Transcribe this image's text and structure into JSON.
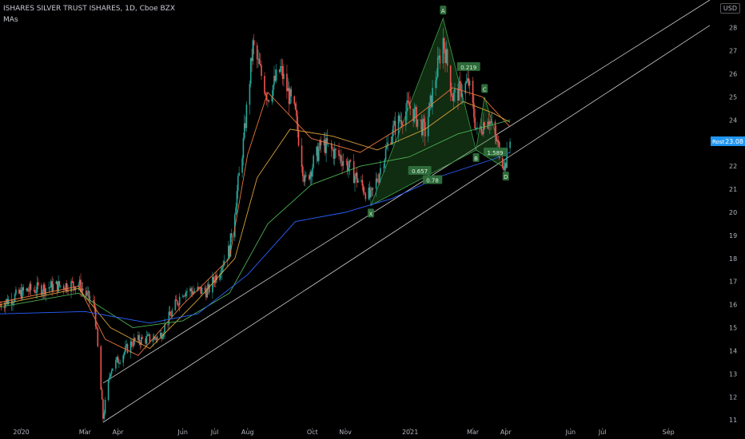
{
  "header": {
    "symbol_line": "ISHARES SILVER TRUST ISHARES, 1D, Cboe BZX",
    "indicator": "MAs",
    "currency": "USD"
  },
  "price_tag": {
    "label": "Rost",
    "value": "23.08"
  },
  "colors": {
    "bg": "#000000",
    "up": "#26a69a",
    "down": "#ef5350",
    "ma_fast": "#e8743b",
    "ma_mid": "#d8a23a",
    "ma_slow": "#4caf50",
    "ma_long": "#2962ff",
    "pattern_fill": "#2e7d32",
    "label_bg": "#2e6b3a",
    "axis_text": "#b2b5be",
    "price_tag": "#2196f3"
  },
  "chart_data": {
    "type": "candlestick",
    "title": "ISHARES SILVER TRUST ISHARES, 1D, Cboe BZX",
    "y_axis": {
      "ticks": [
        11,
        12,
        13,
        14,
        15,
        16,
        17,
        18,
        19,
        20,
        21,
        22,
        23,
        24,
        25,
        26,
        27,
        28
      ],
      "range": [
        10.8,
        29.2
      ],
      "position": "right"
    },
    "x_axis": {
      "ticks": [
        "2020",
        "Mar",
        "Apr",
        "Jun",
        "Jul",
        "Aug",
        "Oct",
        "Nov",
        "2021",
        "Mar",
        "Apr",
        "Jun",
        "Jul",
        "Sep"
      ]
    },
    "price_path": [
      [
        "2019-12-12",
        16.0
      ],
      [
        "2020-01-05",
        16.6
      ],
      [
        "2020-02-01",
        16.8
      ],
      [
        "2020-02-24",
        16.9
      ],
      [
        "2020-03-10",
        15.9
      ],
      [
        "2020-03-18",
        11.1
      ],
      [
        "2020-03-25",
        13.2
      ],
      [
        "2020-04-15",
        14.4
      ],
      [
        "2020-05-10",
        14.6
      ],
      [
        "2020-06-01",
        16.6
      ],
      [
        "2020-06-25",
        16.6
      ],
      [
        "2020-07-15",
        18.4
      ],
      [
        "2020-07-28",
        23.0
      ],
      [
        "2020-08-06",
        27.2
      ],
      [
        "2020-08-20",
        25.0
      ],
      [
        "2020-09-01",
        26.2
      ],
      [
        "2020-09-15",
        24.2
      ],
      [
        "2020-09-24",
        21.3
      ],
      [
        "2020-10-10",
        23.0
      ],
      [
        "2020-10-30",
        22.3
      ],
      [
        "2020-11-25",
        20.6
      ],
      [
        "2020-12-15",
        23.5
      ],
      [
        "2020-12-31",
        24.6
      ],
      [
        "2021-01-15",
        23.5
      ],
      [
        "2021-02-01",
        27.5
      ],
      [
        "2021-02-10",
        25.0
      ],
      [
        "2021-02-25",
        25.6
      ],
      [
        "2021-03-05",
        23.4
      ],
      [
        "2021-03-15",
        24.2
      ],
      [
        "2021-03-31",
        22.0
      ],
      [
        "2021-04-05",
        23.08
      ]
    ],
    "moving_averages": [
      {
        "name": "ma_fast",
        "points": [
          [
            "2019-12-12",
            16.1
          ],
          [
            "2020-02-24",
            16.8
          ],
          [
            "2020-03-20",
            14.5
          ],
          [
            "2020-04-20",
            13.8
          ],
          [
            "2020-06-01",
            16.0
          ],
          [
            "2020-07-15",
            18.0
          ],
          [
            "2020-08-01",
            22.5
          ],
          [
            "2020-08-20",
            25.2
          ],
          [
            "2020-09-30",
            23.2
          ],
          [
            "2020-11-15",
            22.6
          ],
          [
            "2020-12-31",
            23.9
          ],
          [
            "2021-02-10",
            25.4
          ],
          [
            "2021-03-10",
            25.0
          ],
          [
            "2021-04-05",
            23.7
          ]
        ]
      },
      {
        "name": "ma_mid",
        "points": [
          [
            "2019-12-12",
            16.0
          ],
          [
            "2020-02-24",
            16.7
          ],
          [
            "2020-03-25",
            15.0
          ],
          [
            "2020-05-01",
            14.1
          ],
          [
            "2020-06-15",
            16.2
          ],
          [
            "2020-07-20",
            18.0
          ],
          [
            "2020-08-10",
            21.5
          ],
          [
            "2020-09-10",
            23.6
          ],
          [
            "2020-10-20",
            23.3
          ],
          [
            "2020-12-01",
            22.7
          ],
          [
            "2021-01-15",
            23.6
          ],
          [
            "2021-02-20",
            24.8
          ],
          [
            "2021-03-20",
            24.3
          ],
          [
            "2021-04-05",
            23.9
          ]
        ]
      },
      {
        "name": "ma_slow",
        "points": [
          [
            "2019-12-12",
            15.9
          ],
          [
            "2020-02-24",
            16.5
          ],
          [
            "2020-04-15",
            15.0
          ],
          [
            "2020-06-01",
            15.3
          ],
          [
            "2020-07-15",
            16.5
          ],
          [
            "2020-08-20",
            19.5
          ],
          [
            "2020-09-30",
            21.2
          ],
          [
            "2020-11-15",
            22.0
          ],
          [
            "2020-12-31",
            22.4
          ],
          [
            "2021-02-15",
            23.4
          ],
          [
            "2021-03-20",
            23.8
          ],
          [
            "2021-04-05",
            24.0
          ]
        ]
      },
      {
        "name": "ma_long",
        "points": [
          [
            "2019-12-12",
            15.6
          ],
          [
            "2020-03-01",
            15.7
          ],
          [
            "2020-05-01",
            15.2
          ],
          [
            "2020-06-15",
            15.6
          ],
          [
            "2020-08-01",
            17.3
          ],
          [
            "2020-09-15",
            19.6
          ],
          [
            "2020-11-01",
            20.0
          ],
          [
            "2020-12-15",
            20.6
          ],
          [
            "2021-02-01",
            21.6
          ],
          [
            "2021-03-20",
            22.3
          ],
          [
            "2021-04-05",
            22.6
          ]
        ]
      }
    ],
    "trendlines": [
      {
        "name": "upper-channel-line",
        "from": [
          "2020-03-18",
          12.6
        ],
        "to": [
          "2021-10-10",
          29.2
        ]
      },
      {
        "name": "lower-channel-line",
        "from": [
          "2020-03-18",
          10.9
        ],
        "to": [
          "2021-10-10",
          28.1
        ]
      }
    ],
    "harmonic_pattern": {
      "points": [
        {
          "label": "X",
          "date": "2020-11-25",
          "price": 20.3
        },
        {
          "label": "A",
          "date": "2021-02-01",
          "price": 28.4
        },
        {
          "label": "B",
          "date": "2021-03-04",
          "price": 22.7
        },
        {
          "label": "C",
          "date": "2021-03-12",
          "price": 25.0
        },
        {
          "label": "D",
          "date": "2021-04-01",
          "price": 21.9
        }
      ],
      "ratios": [
        {
          "text": "0.219",
          "date": "2021-02-25",
          "price": 26.3
        },
        {
          "text": "0.657",
          "date": "2021-01-10",
          "price": 21.8
        },
        {
          "text": "0.78",
          "date": "2021-01-22",
          "price": 21.4
        },
        {
          "text": "1.589",
          "date": "2021-03-22",
          "price": 22.6
        }
      ]
    }
  }
}
